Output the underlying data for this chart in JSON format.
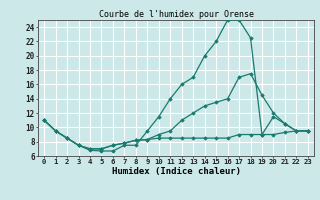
{
  "title": "Courbe de l'humidex pour Orense",
  "xlabel": "Humidex (Indice chaleur)",
  "bg_color": "#cce8e8",
  "line_color": "#1a7a6e",
  "grid_color": "#ffffff",
  "xmin": -0.5,
  "xmax": 23.5,
  "ymin": 6,
  "ymax": 25,
  "line1_x": [
    0,
    1,
    2,
    3,
    4,
    5,
    6,
    7,
    8,
    9,
    10,
    11,
    12,
    13,
    14,
    15,
    16,
    17,
    18,
    19,
    20,
    21,
    22,
    23
  ],
  "line1_y": [
    11,
    9.5,
    8.5,
    7.5,
    6.8,
    6.7,
    6.7,
    7.5,
    7.5,
    9.5,
    11.5,
    14.0,
    16.0,
    17.0,
    20.0,
    22.0,
    25.0,
    25.0,
    22.5,
    9.0,
    11.5,
    10.5,
    9.5,
    9.5
  ],
  "line2_x": [
    0,
    1,
    2,
    3,
    4,
    5,
    6,
    7,
    8,
    9,
    10,
    11,
    12,
    13,
    14,
    15,
    16,
    17,
    18,
    19,
    20,
    21,
    22,
    23
  ],
  "line2_y": [
    11,
    9.5,
    8.5,
    7.5,
    7.0,
    7.0,
    7.5,
    7.8,
    8.2,
    8.3,
    9.0,
    9.5,
    11.0,
    12.0,
    13.0,
    13.5,
    14.0,
    17.0,
    17.5,
    14.5,
    12.0,
    10.5,
    9.5,
    9.5
  ],
  "line3_x": [
    0,
    1,
    2,
    3,
    4,
    5,
    6,
    7,
    8,
    9,
    10,
    11,
    12,
    13,
    14,
    15,
    16,
    17,
    18,
    19,
    20,
    21,
    22,
    23
  ],
  "line3_y": [
    11,
    9.5,
    8.5,
    7.5,
    7.0,
    7.0,
    7.5,
    7.8,
    8.2,
    8.3,
    8.5,
    8.5,
    8.5,
    8.5,
    8.5,
    8.5,
    8.5,
    9.0,
    9.0,
    9.0,
    9.0,
    9.3,
    9.5,
    9.5
  ],
  "yticks": [
    6,
    8,
    10,
    12,
    14,
    16,
    18,
    20,
    22,
    24
  ],
  "title_fontsize": 6.0,
  "xlabel_fontsize": 6.5,
  "tick_fontsize": 5.2
}
